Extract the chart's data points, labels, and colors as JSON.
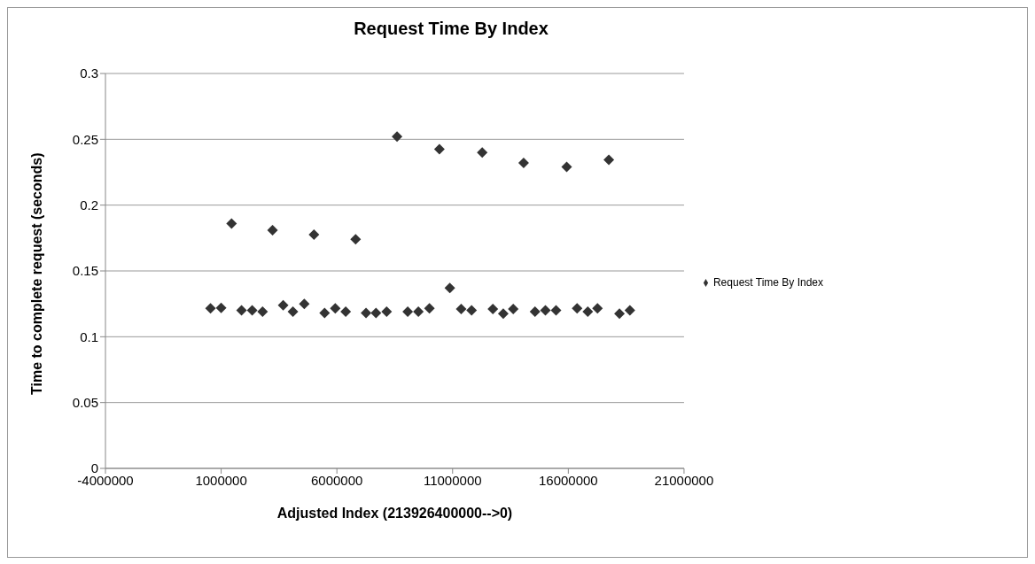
{
  "chart_data": {
    "type": "scatter",
    "title": "Request Time By Index",
    "xlabel": "Adjusted Index (213926400000-->0)",
    "ylabel": "Time to complete request (seconds)",
    "x": [
      540000,
      1000000,
      1450000,
      1880000,
      2340000,
      2790000,
      3220000,
      3680000,
      4100000,
      4590000,
      5010000,
      5470000,
      5930000,
      6380000,
      6810000,
      7260000,
      7690000,
      8150000,
      8600000,
      9060000,
      9520000,
      10000000,
      10430000,
      10880000,
      11370000,
      11820000,
      12280000,
      12740000,
      13190000,
      13620000,
      14070000,
      14560000,
      15010000,
      15470000,
      15930000,
      16380000,
      16840000,
      17260000,
      17750000,
      18210000,
      18660000
    ],
    "series": [
      {
        "name": "Request Time By Index",
        "color": "#333333",
        "values": [
          0.1215,
          0.122,
          0.186,
          0.12,
          0.12,
          0.119,
          0.181,
          0.124,
          0.119,
          0.125,
          0.1775,
          0.118,
          0.1215,
          0.119,
          0.174,
          0.118,
          0.118,
          0.119,
          0.252,
          0.119,
          0.119,
          0.1215,
          0.2425,
          0.137,
          0.121,
          0.12,
          0.24,
          0.121,
          0.1175,
          0.121,
          0.232,
          0.119,
          0.12,
          0.12,
          0.229,
          0.1215,
          0.119,
          0.1215,
          0.2345,
          0.1175,
          0.12
        ]
      }
    ],
    "xlim": [
      -4000000,
      21000000
    ],
    "xticks": [
      -4000000,
      1000000,
      6000000,
      11000000,
      16000000,
      21000000
    ],
    "ylim": [
      0,
      0.3
    ],
    "yticks": [
      0,
      0.05,
      0.1,
      0.15,
      0.2,
      0.25,
      0.3
    ],
    "grid": "y",
    "legend": "right",
    "marker": "diamond"
  }
}
